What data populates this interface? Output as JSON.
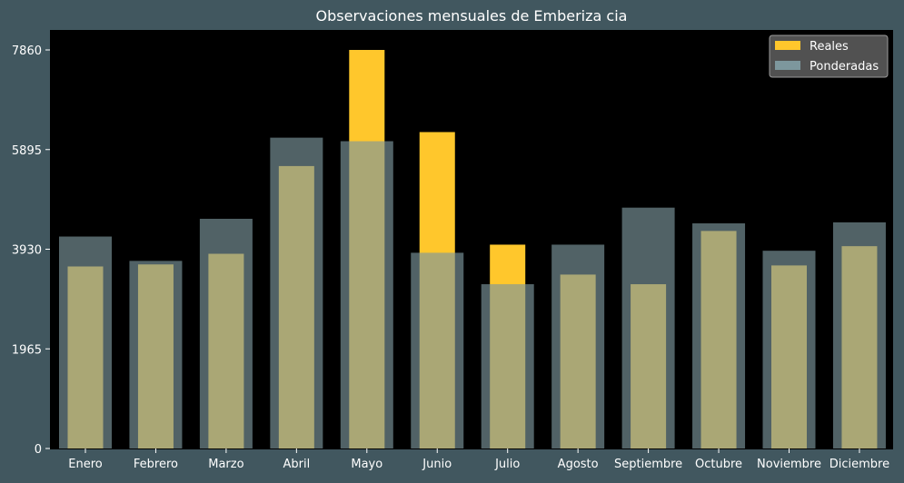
{
  "colors": {
    "background": "#41575f",
    "plot_area": "#000000",
    "reales": "#ffc72c",
    "ponderadas": "#7d979d",
    "text": "#ffffff"
  },
  "chart_data": {
    "type": "bar",
    "title": "Observaciones mensuales de Emberiza cia",
    "xlabel": "",
    "ylabel": "",
    "categories": [
      "Enero",
      "Febrero",
      "Marzo",
      "Abril",
      "Mayo",
      "Junio",
      "Julio",
      "Agosto",
      "Septiembre",
      "Octubre",
      "Noviembre",
      "Diciembre"
    ],
    "series": [
      {
        "name": "Reales",
        "values": [
          3590,
          3630,
          3840,
          5570,
          7860,
          6240,
          4020,
          3430,
          3240,
          4290,
          3610,
          3990
        ]
      },
      {
        "name": "Ponderadas",
        "values": [
          4180,
          3700,
          4530,
          6130,
          6060,
          3860,
          3240,
          4020,
          4750,
          4440,
          3900,
          4460
        ]
      }
    ],
    "yticks": [
      0,
      1965,
      3930,
      5895,
      7860
    ],
    "ylim": [
      0,
      7860
    ],
    "legend": "top-right",
    "grid": false
  }
}
